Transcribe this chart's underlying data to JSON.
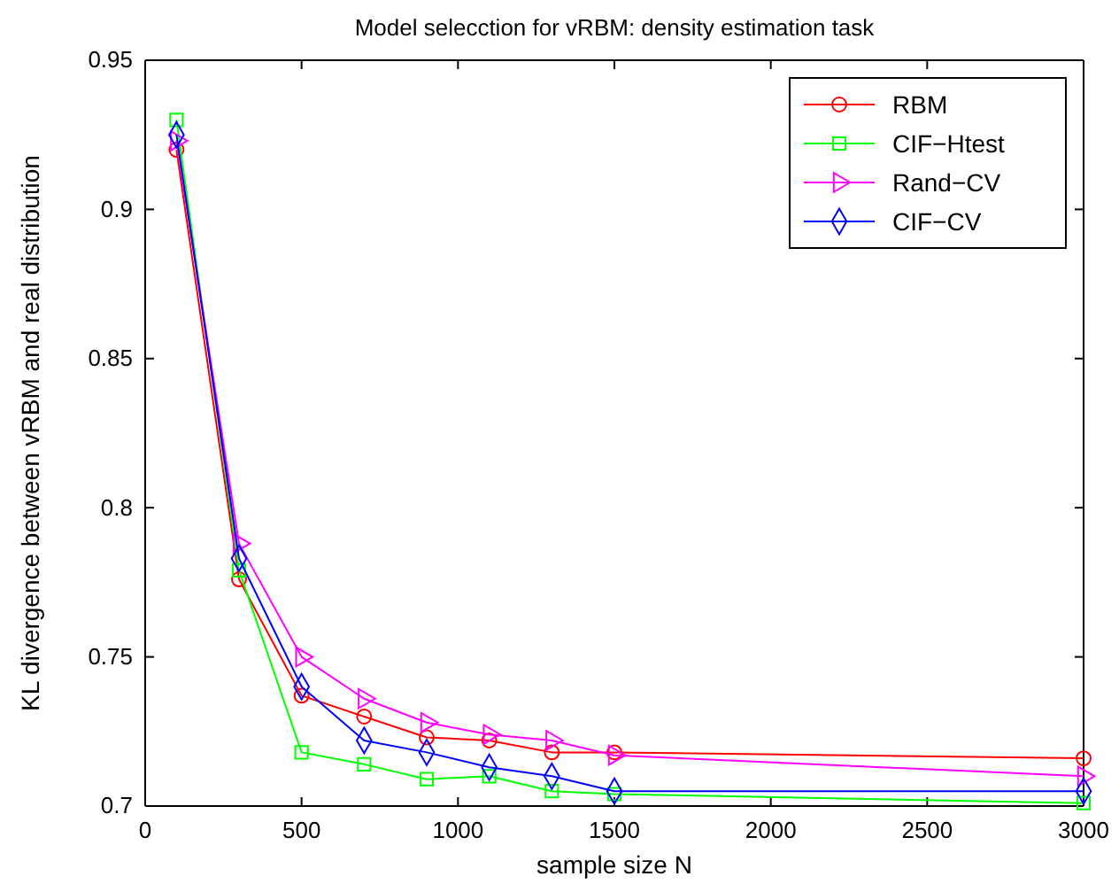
{
  "chart_data": {
    "type": "line",
    "title": "Model selecction for vRBM: density estimation task",
    "xlabel": "sample size N",
    "ylabel": "KL divergence between vRBM and real distribution",
    "x": [
      100,
      300,
      500,
      700,
      900,
      1100,
      1300,
      1500,
      3000
    ],
    "series": [
      {
        "name": "RBM",
        "color": "#ff0000",
        "marker": "circle",
        "values": [
          0.92,
          0.776,
          0.737,
          0.73,
          0.723,
          0.722,
          0.718,
          0.718,
          0.716
        ]
      },
      {
        "name": "CIF−Htest",
        "color": "#00ff00",
        "marker": "square",
        "values": [
          0.93,
          0.779,
          0.718,
          0.714,
          0.709,
          0.71,
          0.705,
          0.704,
          0.701
        ]
      },
      {
        "name": "Rand−CV",
        "color": "#ff00ff",
        "marker": "triangle",
        "values": [
          0.923,
          0.788,
          0.75,
          0.736,
          0.728,
          0.724,
          0.722,
          0.717,
          0.71
        ]
      },
      {
        "name": "CIF−CV",
        "color": "#0000ff",
        "marker": "diamond",
        "values": [
          0.925,
          0.783,
          0.74,
          0.722,
          0.718,
          0.713,
          0.71,
          0.705,
          0.705
        ]
      }
    ],
    "xlim": [
      0,
      3000
    ],
    "xticks": [
      0,
      500,
      1000,
      1500,
      2000,
      2500,
      3000
    ],
    "ylim": [
      0.7,
      0.95
    ],
    "yticks": [
      0.7,
      0.75,
      0.8,
      0.85,
      0.9,
      0.95
    ],
    "grid": false,
    "legend": "top right",
    "line_style": "solid"
  }
}
